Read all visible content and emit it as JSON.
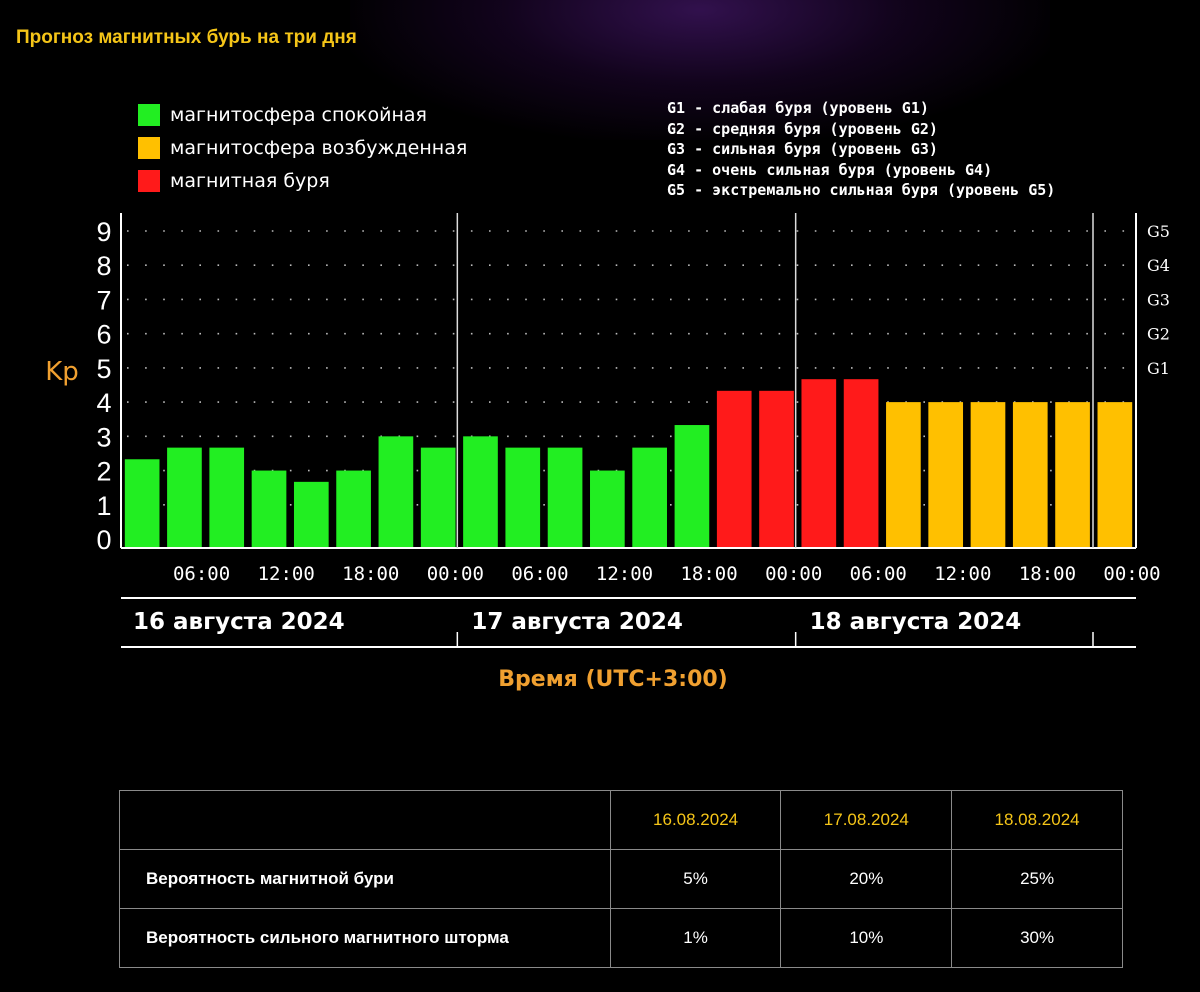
{
  "page_title": "Прогноз магнитных бурь на три дня",
  "legend": [
    {
      "label": "магнитосфера спокойная",
      "color": "#22ee22"
    },
    {
      "label": "магнитосфера возбужденная",
      "color": "#ffc000"
    },
    {
      "label": "магнитная буря",
      "color": "#ff1a1a"
    }
  ],
  "g_legend": [
    "G1 - слабая буря (уровень G1)",
    "G2 - средняя буря (уровень G2)",
    "G3 - сильная буря (уровень G3)",
    "G4 - очень сильная буря (уровень G4)",
    "G5 - экстремально сильная буря (уровень G5)"
  ],
  "chart_data": {
    "type": "bar",
    "ylabel": "Kp",
    "xlabel": "Время (UTC+3:00)",
    "ylim": [
      0,
      9
    ],
    "y_ticks": [
      0,
      1,
      2,
      3,
      4,
      5,
      6,
      7,
      8,
      9
    ],
    "right_axis_labels": [
      {
        "label": "G1",
        "kp": 5
      },
      {
        "label": "G2",
        "kp": 6
      },
      {
        "label": "G3",
        "kp": 7
      },
      {
        "label": "G4",
        "kp": 8
      },
      {
        "label": "G5",
        "kp": 9
      }
    ],
    "x_tick_labels": [
      "06:00",
      "12:00",
      "18:00",
      "00:00",
      "06:00",
      "12:00",
      "18:00",
      "00:00",
      "06:00",
      "12:00",
      "18:00",
      "00:00"
    ],
    "days": [
      "16 августа 2024",
      "17 августа 2024",
      "18 августа 2024"
    ],
    "grid": true,
    "series": [
      {
        "values": [
          2.33,
          2.67,
          2.67,
          2.0,
          1.67,
          2.0,
          3.0,
          2.67,
          3.0,
          2.67,
          2.67,
          2.0,
          2.67,
          3.33,
          4.33,
          4.33,
          4.67,
          4.67,
          4.0,
          4.0,
          4.0,
          4.0,
          4.0,
          4.0
        ],
        "colors": [
          "#22ee22",
          "#22ee22",
          "#22ee22",
          "#22ee22",
          "#22ee22",
          "#22ee22",
          "#22ee22",
          "#22ee22",
          "#22ee22",
          "#22ee22",
          "#22ee22",
          "#22ee22",
          "#22ee22",
          "#22ee22",
          "#ff1a1a",
          "#ff1a1a",
          "#ff1a1a",
          "#ff1a1a",
          "#ffc000",
          "#ffc000",
          "#ffc000",
          "#ffc000",
          "#ffc000",
          "#ffc000"
        ]
      }
    ]
  },
  "table": {
    "dates": [
      "16.08.2024",
      "17.08.2024",
      "18.08.2024"
    ],
    "rows": [
      {
        "label": "Вероятность магнитной бури",
        "values": [
          "5%",
          "20%",
          "25%"
        ]
      },
      {
        "label": "Вероятность сильного магнитного шторма",
        "values": [
          "1%",
          "10%",
          "30%"
        ]
      }
    ]
  },
  "colors": {
    "title": "#f5c518",
    "axis_label": "#f0a030",
    "calm": "#22ee22",
    "excited": "#ffc000",
    "storm": "#ff1a1a"
  }
}
